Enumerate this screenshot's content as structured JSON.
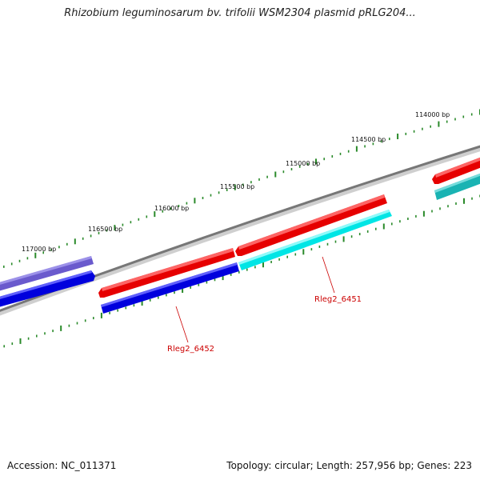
{
  "title": "Rhizobium leguminosarum bv. trifolii WSM2304 plasmid pRLG204...",
  "footer": {
    "accession": "Accession: NC_011371",
    "summary": "Topology: circular; Length: 257,956 bp; Genes: 223"
  },
  "ruler_labels": [
    "114000 bp",
    "114500 bp",
    "115000 bp",
    "115500 bp",
    "116000 bp",
    "116500 bp",
    "117000 bp"
  ],
  "gene_labels": [
    "Rleg2_6451",
    "Rleg2_6452"
  ],
  "colors": {
    "backbone": "#777777",
    "tick": "#2a8a2a",
    "label_line": "#cc0000",
    "forward_red": "#e60000",
    "reverse_blue": "#0000dd",
    "cyan": "#00e5e5",
    "teal": "#19b3b3",
    "slate_blue": "#6a5acd"
  }
}
